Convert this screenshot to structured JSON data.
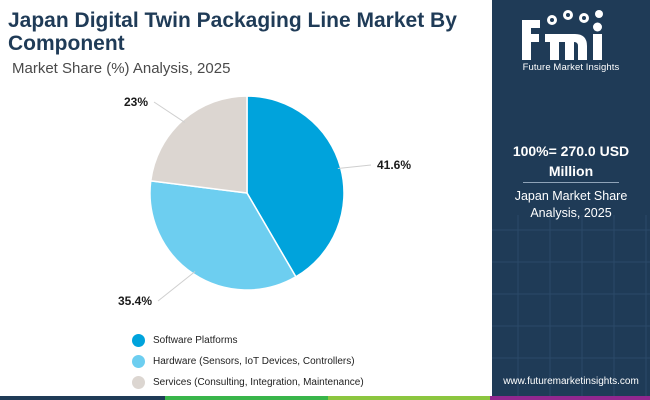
{
  "header": {
    "title": "Japan Digital Twin Packaging Line Market By Component",
    "subtitle": "Market Share (%) Analysis, 2025"
  },
  "chart_data": {
    "type": "pie",
    "categories": [
      "Software Platforms",
      "Hardware (Sensors, IoT Devices, Controllers)",
      "Services (Consulting, Integration, Maintenance)"
    ],
    "values": [
      41.6,
      35.4,
      23
    ],
    "value_labels": [
      "41.6%",
      "35.4%",
      "23%"
    ],
    "colors": [
      "#00a3dc",
      "#6dcef0",
      "#dcd6d1"
    ],
    "legend_placement": "bottom"
  },
  "panel": {
    "logo_text": "Future Market Insights",
    "total_label": "100%= 270.0 USD Million",
    "subtitle": "Japan Market Share Analysis, 2025",
    "website": "www.futuremarketinsights.com"
  },
  "colors": {
    "panel_bg": "#1f3b57",
    "title": "#1f3b57",
    "bar": [
      "#1f3b57",
      "#39b54a",
      "#8cc63f",
      "#00a3dc",
      "#92278f"
    ]
  }
}
